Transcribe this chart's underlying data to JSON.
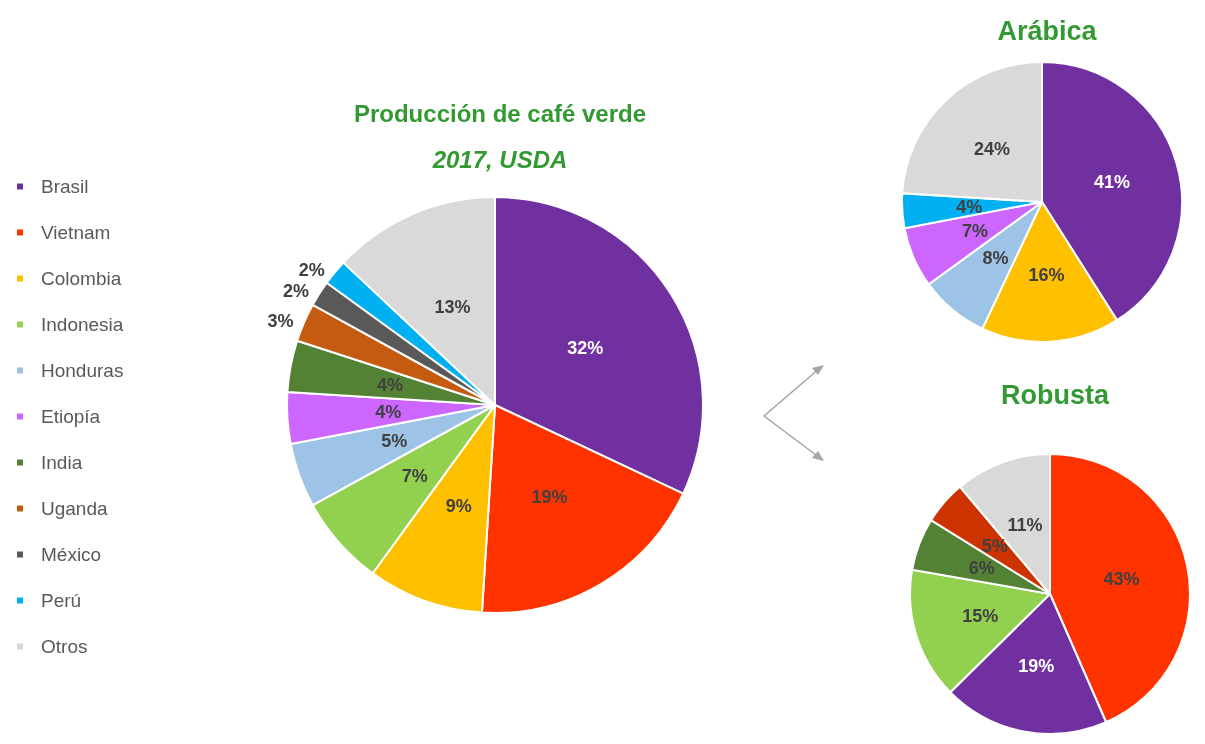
{
  "chart_data": [
    {
      "type": "pie",
      "title": "Producción de café verde",
      "subtitle": "2017, USDA",
      "legend": "left",
      "categories": [
        "Brasil",
        "Vietnam",
        "Colombia",
        "Indonesia",
        "Honduras",
        "Etiopía",
        "India",
        "Uganda",
        "México",
        "Perú",
        "Otros"
      ],
      "values": [
        32,
        19,
        9,
        7,
        5,
        4,
        4,
        3,
        2,
        2,
        13
      ],
      "value_labels": [
        "32%",
        "19%",
        "9%",
        "7%",
        "5%",
        "4%",
        "4%",
        "3%",
        "2%",
        "2%",
        "13%"
      ],
      "colors": [
        "#7030a0",
        "#ff3300",
        "#ffc000",
        "#92d050",
        "#9dc3e6",
        "#cc66ff",
        "#548235",
        "#c55a11",
        "#595959",
        "#00b0f0",
        "#d9d9d9"
      ]
    },
    {
      "type": "pie",
      "title": "Arábica",
      "legend": false,
      "categories": [
        null,
        null,
        null,
        null,
        null,
        null
      ],
      "values": [
        41,
        16,
        8,
        7,
        4,
        24
      ],
      "value_labels": [
        "41%",
        "16%",
        "8%",
        "7%",
        "4%",
        "24%"
      ],
      "colors": [
        "#7030a0",
        "#ffc000",
        "#9dc3e6",
        "#cc66ff",
        "#00b0f0",
        "#d9d9d9"
      ]
    },
    {
      "type": "pie",
      "title": "Robusta",
      "legend": false,
      "categories": [
        null,
        null,
        null,
        null,
        null,
        null
      ],
      "values": [
        43,
        19,
        15,
        6,
        5,
        11
      ],
      "value_labels": [
        "43%",
        "19%",
        "15%",
        "6%",
        "5%",
        "11%"
      ],
      "colors": [
        "#ff3300",
        "#7030a0",
        "#92d050",
        "#548235",
        "#cc3300",
        "#d9d9d9"
      ]
    }
  ]
}
